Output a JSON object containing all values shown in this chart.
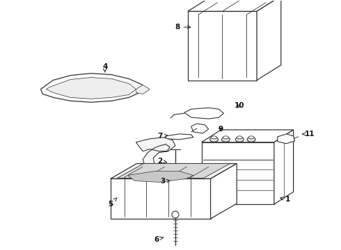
{
  "background_color": "#ffffff",
  "line_color": "#333333",
  "fig_width": 4.9,
  "fig_height": 3.6,
  "dpi": 100,
  "label_fontsize": 7.5
}
